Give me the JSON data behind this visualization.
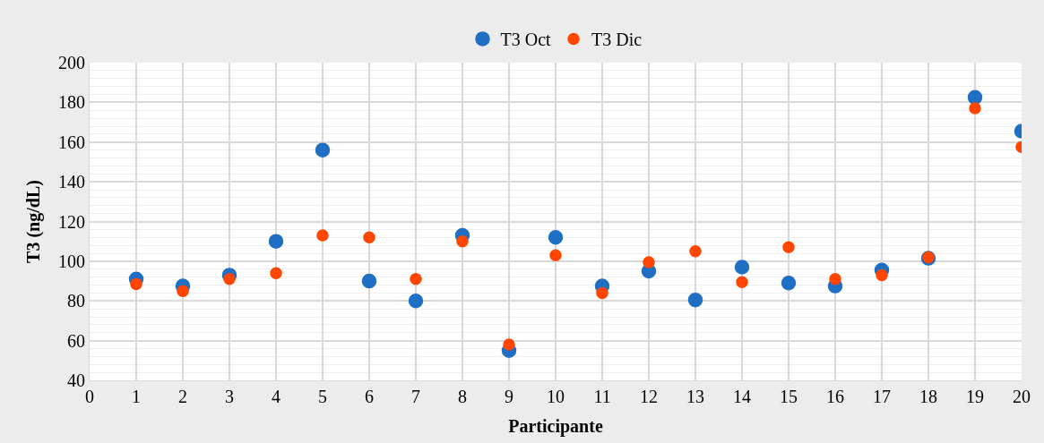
{
  "chart_data": {
    "type": "scatter",
    "xlabel": "Participante",
    "ylabel": "T3 (ng/dL)",
    "x": [
      1,
      2,
      3,
      4,
      5,
      6,
      7,
      8,
      9,
      10,
      11,
      12,
      13,
      14,
      15,
      16,
      17,
      18,
      19,
      20
    ],
    "series": [
      {
        "name": "T3 Oct",
        "color": "#1f6fc5",
        "values": [
          91,
          87.5,
          93,
          110,
          156,
          90,
          80,
          113,
          55,
          112,
          87.5,
          95,
          80.5,
          97,
          89,
          87.5,
          95.5,
          101.5,
          182.5,
          165.5
        ]
      },
      {
        "name": "T3 Dic",
        "color": "#ff4500",
        "values": [
          88.5,
          85,
          91,
          94,
          113,
          112,
          91,
          110,
          58,
          103,
          84,
          99.5,
          105,
          89.5,
          107,
          91,
          93,
          102,
          177,
          157.5
        ]
      }
    ],
    "xlim": [
      0,
      20
    ],
    "xticks": [
      0,
      1,
      2,
      3,
      4,
      5,
      6,
      7,
      8,
      9,
      10,
      11,
      12,
      13,
      14,
      15,
      16,
      17,
      18,
      19,
      20
    ],
    "ylim": [
      40,
      200
    ],
    "yticks": [
      40,
      60,
      80,
      100,
      120,
      140,
      160,
      180,
      200
    ],
    "grid": true,
    "legend": "top",
    "marker": "circle"
  }
}
